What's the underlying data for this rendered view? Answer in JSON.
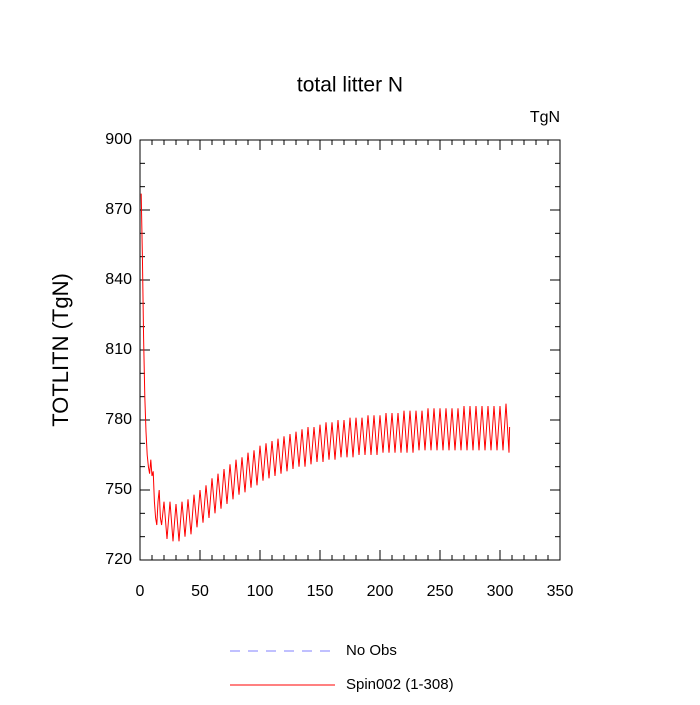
{
  "chart_data": {
    "type": "line",
    "title": "total litter N",
    "units": "TgN",
    "ylabel": "TOTLITN  (TgN)",
    "xlim": [
      0,
      350
    ],
    "xticks": [
      0,
      50,
      100,
      150,
      200,
      250,
      300,
      350
    ],
    "x_minor_ticks": [
      10,
      20,
      30,
      40,
      60,
      70,
      80,
      90,
      110,
      120,
      130,
      140,
      160,
      170,
      180,
      190,
      210,
      220,
      230,
      240,
      260,
      270,
      280,
      290,
      310,
      320,
      330,
      340
    ],
    "ylim": [
      720,
      900
    ],
    "yticks": [
      720,
      750,
      780,
      810,
      840,
      870,
      900
    ],
    "y_minor_ticks": [
      730,
      740,
      760,
      770,
      790,
      800,
      820,
      830,
      850,
      860,
      880,
      890
    ],
    "series": [
      {
        "name": "No Obs",
        "color": "#8080ff",
        "dashed": true,
        "x": [],
        "values": []
      },
      {
        "name": "Spin002 (1-308)",
        "color": "#ff0000",
        "dashed": false,
        "x": [
          1,
          2,
          3,
          4,
          5,
          6,
          7,
          8,
          9,
          10,
          11,
          12,
          13,
          14,
          15,
          16,
          17,
          18,
          20,
          22.5,
          25,
          27.5,
          30,
          32.5,
          35,
          37.5,
          40,
          42.5,
          45,
          47.5,
          50,
          52.5,
          55,
          57.5,
          60,
          62.5,
          65,
          67.5,
          70,
          72.5,
          75,
          77.5,
          80,
          82.5,
          85,
          87.5,
          90,
          92.5,
          95,
          97.5,
          100,
          102.5,
          105,
          107.5,
          110,
          112.5,
          115,
          117.5,
          120,
          122.5,
          125,
          127.5,
          130,
          132.5,
          135,
          137.5,
          140,
          142.5,
          145,
          147.5,
          150,
          152.5,
          155,
          157.5,
          160,
          162.5,
          165,
          167.5,
          170,
          172.5,
          175,
          177.5,
          180,
          182.5,
          185,
          187.5,
          190,
          192.5,
          195,
          197.5,
          200,
          202.5,
          205,
          207.5,
          210,
          212.5,
          215,
          217.5,
          220,
          222.5,
          225,
          227.5,
          230,
          232.5,
          235,
          237.5,
          240,
          242.5,
          245,
          247.5,
          250,
          252.5,
          255,
          257.5,
          260,
          262.5,
          265,
          267.5,
          270,
          272.5,
          275,
          277.5,
          280,
          282.5,
          285,
          287.5,
          290,
          292.5,
          295,
          297.5,
          300,
          302.5,
          305,
          307.5,
          308
        ],
        "values": [
          877,
          850,
          815,
          790,
          775,
          765,
          760,
          757,
          763,
          756,
          758,
          745,
          738,
          735,
          745,
          750,
          738,
          735,
          745,
          729,
          745,
          728,
          744,
          728,
          745,
          730,
          746,
          731,
          748,
          734,
          750,
          736,
          752,
          738,
          755,
          740,
          757,
          742,
          759,
          744,
          761,
          746,
          763,
          748,
          764,
          749,
          766,
          751,
          767,
          752,
          769,
          754,
          770,
          755,
          771,
          756,
          772,
          757,
          773,
          758,
          774,
          759,
          775,
          760,
          776,
          760,
          777,
          761,
          777,
          762,
          778,
          762,
          779,
          763,
          779,
          763,
          780,
          764,
          780,
          764,
          781,
          764,
          781,
          765,
          781,
          765,
          782,
          765,
          782,
          765,
          782,
          766,
          783,
          766,
          783,
          766,
          783,
          766,
          784,
          766,
          784,
          766,
          784,
          767,
          784,
          767,
          785,
          767,
          785,
          767,
          785,
          767,
          785,
          767,
          785,
          767,
          785,
          767,
          786,
          767,
          786,
          767,
          786,
          767,
          786,
          767,
          786,
          767,
          786,
          767,
          786,
          767,
          787,
          766,
          777
        ]
      }
    ]
  }
}
